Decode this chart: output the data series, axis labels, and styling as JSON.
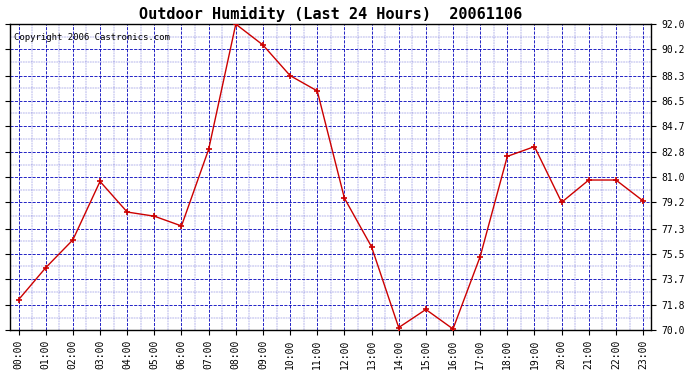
{
  "title": "Outdoor Humidity (Last 24 Hours)  20061106",
  "copyright_text": "Copyright 2006 Castronics.com",
  "x_labels": [
    "00:00",
    "01:00",
    "02:00",
    "03:00",
    "04:00",
    "05:00",
    "06:00",
    "07:00",
    "08:00",
    "09:00",
    "10:00",
    "11:00",
    "12:00",
    "13:00",
    "14:00",
    "15:00",
    "16:00",
    "17:00",
    "18:00",
    "19:00",
    "20:00",
    "21:00",
    "22:00",
    "23:00"
  ],
  "y_values": [
    72.2,
    74.5,
    76.5,
    80.7,
    78.5,
    78.2,
    77.5,
    83.0,
    92.0,
    90.5,
    88.3,
    87.2,
    79.5,
    76.0,
    70.2,
    71.5,
    70.1,
    75.3,
    82.5,
    83.2,
    79.2,
    80.8,
    80.8,
    79.3
  ],
  "line_color": "#cc0000",
  "marker_color": "#cc0000",
  "bg_color": "#ffffff",
  "plot_bg_color": "#ffffff",
  "grid_major_color": "#0000bb",
  "grid_minor_color": "#aaaaff",
  "tick_label_color": "#000000",
  "border_color": "#000000",
  "ylim_min": 70.0,
  "ylim_max": 92.0,
  "ytick_values": [
    70.0,
    71.8,
    73.7,
    75.5,
    77.3,
    79.2,
    81.0,
    82.8,
    84.7,
    86.5,
    88.3,
    90.2,
    92.0
  ],
  "title_fontsize": 11,
  "tick_fontsize": 7,
  "copyright_fontsize": 6.5
}
